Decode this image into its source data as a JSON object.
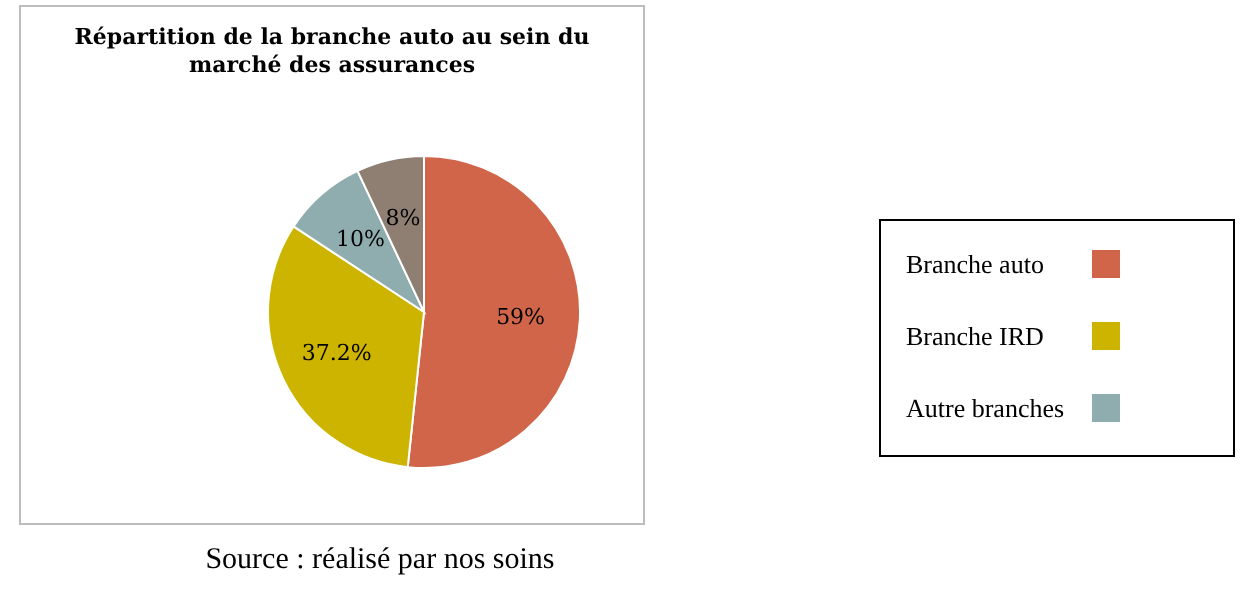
{
  "chart_data": {
    "type": "pie",
    "title": "Répartition de la branche auto au sein du\nmarché des assurances",
    "categories": [
      "Branche auto",
      "Branche IRD",
      "Autre branches",
      null
    ],
    "values": [
      59,
      37.2,
      10,
      8
    ],
    "colors": [
      "#d0654a",
      "#ccb400",
      "#8fadaf",
      "#8f7f72"
    ],
    "value_labels": [
      "59%",
      "37.2%",
      "10%",
      "8%"
    ],
    "legend": "right",
    "annotations": [
      "Source : réalisé par nos soins"
    ]
  }
}
